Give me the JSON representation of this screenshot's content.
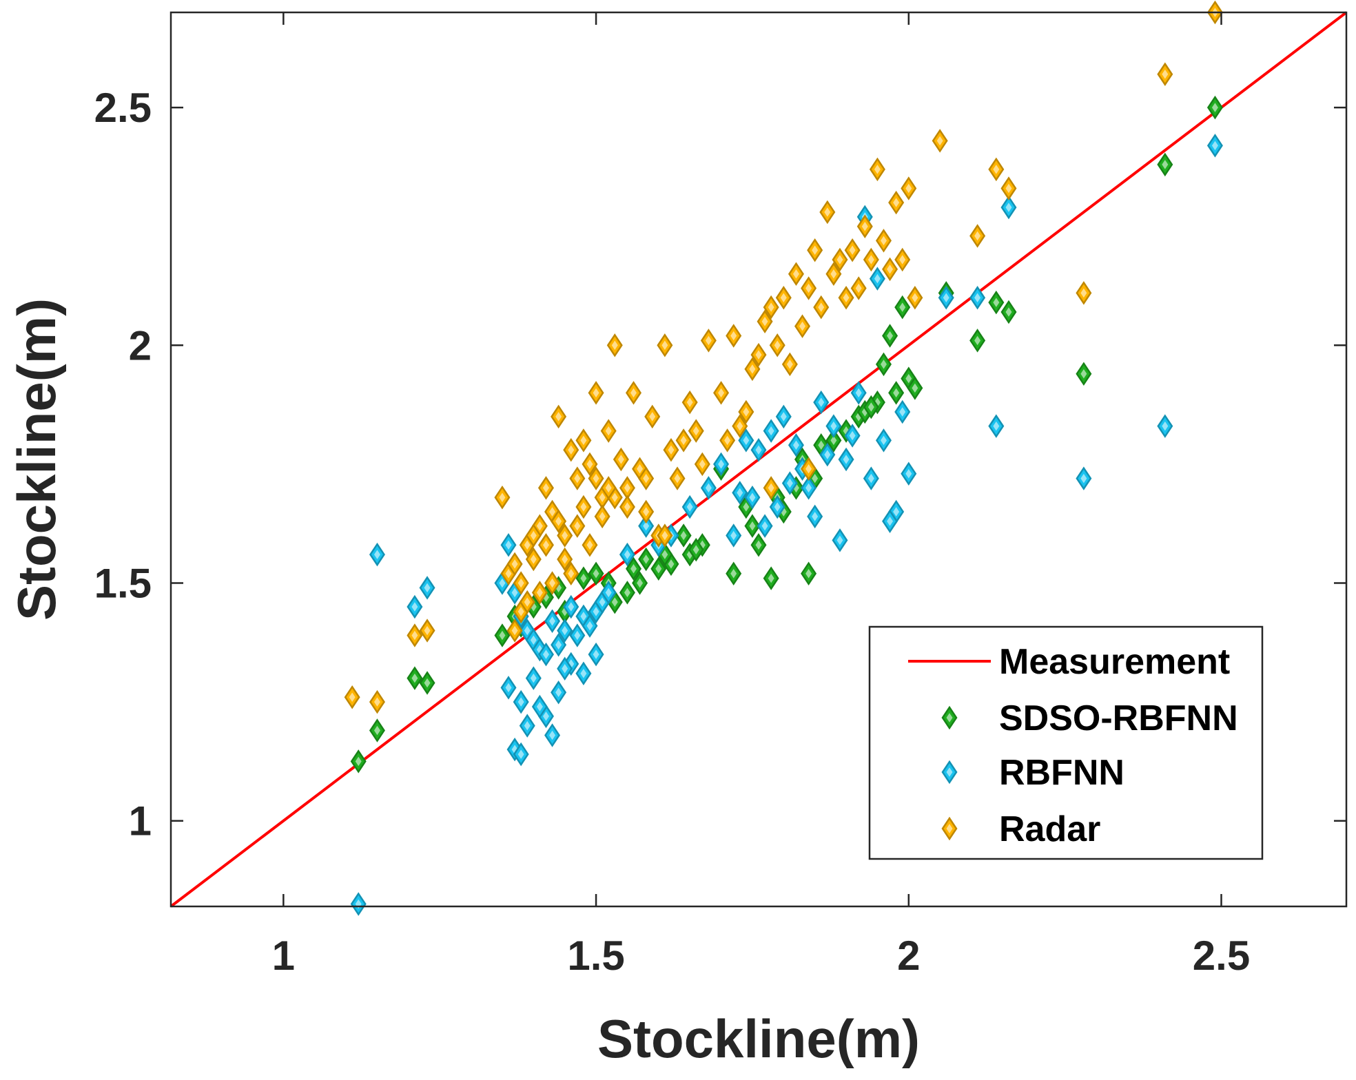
{
  "chart_data": {
    "type": "scatter",
    "title": "",
    "xlabel": "Stockline(m)",
    "ylabel": "Stockline(m)",
    "xlim": [
      0.82,
      2.7
    ],
    "ylim": [
      0.82,
      2.7
    ],
    "xticks": [
      1,
      1.5,
      2,
      2.5
    ],
    "yticks": [
      1,
      1.5,
      2,
      2.5
    ],
    "xtick_labels": [
      "1",
      "1.5",
      "2",
      "2.5"
    ],
    "ytick_labels": [
      "1",
      "1.5",
      "2",
      "2.5"
    ],
    "grid": false,
    "legend_position": "bottom-right",
    "reference_line": {
      "name": "Measurement",
      "color": "#ff0000",
      "x": [
        0.82,
        2.7
      ],
      "y": [
        0.82,
        2.7
      ]
    },
    "series": [
      {
        "name": "SDSO-RBFNN",
        "marker": "diamond",
        "color": "#1fae1f",
        "x": [
          1.12,
          1.15,
          1.21,
          1.23,
          1.35,
          1.37,
          1.4,
          1.42,
          1.45,
          1.5,
          1.53,
          1.55,
          1.57,
          1.58,
          1.6,
          1.62,
          1.65,
          1.67,
          1.72,
          1.75,
          1.76,
          1.78,
          1.8,
          1.82,
          1.84,
          1.85,
          1.87,
          1.9,
          1.92,
          1.95,
          1.96,
          1.97,
          1.99,
          2.0,
          2.06,
          2.11,
          2.14,
          2.16,
          2.28,
          2.41,
          2.49,
          1.38,
          1.44,
          1.48,
          1.52,
          1.56,
          1.61,
          1.66,
          1.74,
          1.79,
          1.83,
          1.88,
          1.93,
          1.98,
          2.01,
          1.7,
          1.86,
          1.94,
          1.64
        ],
        "y": [
          1.125,
          1.19,
          1.3,
          1.29,
          1.39,
          1.43,
          1.45,
          1.47,
          1.44,
          1.52,
          1.46,
          1.48,
          1.5,
          1.55,
          1.53,
          1.54,
          1.56,
          1.58,
          1.52,
          1.62,
          1.58,
          1.51,
          1.65,
          1.7,
          1.52,
          1.72,
          1.78,
          1.82,
          1.85,
          1.88,
          1.96,
          2.02,
          2.08,
          1.93,
          2.11,
          2.01,
          2.09,
          2.07,
          1.94,
          2.38,
          2.5,
          1.41,
          1.49,
          1.51,
          1.5,
          1.53,
          1.56,
          1.57,
          1.66,
          1.68,
          1.76,
          1.8,
          1.86,
          1.9,
          1.91,
          1.74,
          1.79,
          1.87,
          1.6
        ]
      },
      {
        "name": "RBFNN",
        "marker": "diamond",
        "color": "#19c3f0",
        "x": [
          1.12,
          1.15,
          1.21,
          1.23,
          1.35,
          1.36,
          1.37,
          1.38,
          1.39,
          1.4,
          1.41,
          1.42,
          1.43,
          1.44,
          1.45,
          1.46,
          1.47,
          1.48,
          1.49,
          1.5,
          1.51,
          1.52,
          1.36,
          1.38,
          1.4,
          1.42,
          1.44,
          1.46,
          1.48,
          1.5,
          1.39,
          1.41,
          1.43,
          1.45,
          1.37,
          1.38,
          1.55,
          1.58,
          1.6,
          1.62,
          1.65,
          1.68,
          1.7,
          1.72,
          1.74,
          1.76,
          1.78,
          1.8,
          1.82,
          1.84,
          1.86,
          1.88,
          1.9,
          1.92,
          1.94,
          1.96,
          1.98,
          2.0,
          1.75,
          1.77,
          1.79,
          1.81,
          1.83,
          1.85,
          1.87,
          1.89,
          1.91,
          1.93,
          1.73,
          1.95,
          1.97,
          2.06,
          2.11,
          2.14,
          2.16,
          2.28,
          2.41,
          2.49,
          1.99
        ],
        "y": [
          0.825,
          1.56,
          1.45,
          1.49,
          1.5,
          1.58,
          1.48,
          1.43,
          1.4,
          1.38,
          1.36,
          1.35,
          1.42,
          1.37,
          1.4,
          1.45,
          1.39,
          1.43,
          1.41,
          1.44,
          1.46,
          1.48,
          1.28,
          1.25,
          1.3,
          1.22,
          1.27,
          1.33,
          1.31,
          1.35,
          1.2,
          1.24,
          1.18,
          1.32,
          1.15,
          1.14,
          1.56,
          1.62,
          1.58,
          1.6,
          1.66,
          1.7,
          1.75,
          1.6,
          1.8,
          1.78,
          1.82,
          1.85,
          1.79,
          1.7,
          1.88,
          1.83,
          1.76,
          1.9,
          1.72,
          1.8,
          1.65,
          1.73,
          1.68,
          1.62,
          1.66,
          1.71,
          1.74,
          1.64,
          1.77,
          1.59,
          1.81,
          2.27,
          1.69,
          2.14,
          1.63,
          2.1,
          2.1,
          1.83,
          2.29,
          1.72,
          1.83,
          2.42,
          1.86
        ]
      },
      {
        "name": "Radar",
        "marker": "diamond",
        "color": "#ffb400",
        "x": [
          1.11,
          1.15,
          1.21,
          1.23,
          1.35,
          1.36,
          1.37,
          1.38,
          1.39,
          1.4,
          1.41,
          1.42,
          1.43,
          1.44,
          1.45,
          1.46,
          1.47,
          1.48,
          1.49,
          1.5,
          1.51,
          1.52,
          1.53,
          1.54,
          1.55,
          1.56,
          1.57,
          1.58,
          1.59,
          1.6,
          1.61,
          1.62,
          1.63,
          1.64,
          1.65,
          1.66,
          1.67,
          1.68,
          1.7,
          1.72,
          1.74,
          1.75,
          1.76,
          1.77,
          1.78,
          1.79,
          1.8,
          1.81,
          1.82,
          1.83,
          1.84,
          1.85,
          1.86,
          1.87,
          1.88,
          1.89,
          1.9,
          1.91,
          1.92,
          1.93,
          1.94,
          1.95,
          1.96,
          1.97,
          1.98,
          1.99,
          2.0,
          2.01,
          2.05,
          2.11,
          2.14,
          2.16,
          2.28,
          2.41,
          2.49,
          1.43,
          1.45,
          1.47,
          1.49,
          1.51,
          1.53,
          1.41,
          1.39,
          1.46,
          1.48,
          1.5,
          1.42,
          1.44,
          1.52,
          1.55,
          1.58,
          1.61,
          1.37,
          1.38,
          1.4,
          1.84,
          1.78,
          1.71,
          1.73
        ],
        "y": [
          1.26,
          1.25,
          1.39,
          1.4,
          1.68,
          1.52,
          1.4,
          1.44,
          1.58,
          1.55,
          1.62,
          1.7,
          1.65,
          1.85,
          1.6,
          1.78,
          1.72,
          1.8,
          1.75,
          1.9,
          1.68,
          1.82,
          2.0,
          1.76,
          1.7,
          1.9,
          1.74,
          1.65,
          1.85,
          1.6,
          2.0,
          1.78,
          1.72,
          1.8,
          1.88,
          1.82,
          1.75,
          2.01,
          1.9,
          2.02,
          1.86,
          1.95,
          1.98,
          2.05,
          2.08,
          2.0,
          2.1,
          1.96,
          2.15,
          2.04,
          2.12,
          2.2,
          2.08,
          2.28,
          2.15,
          2.18,
          2.1,
          2.2,
          2.12,
          2.25,
          2.18,
          2.37,
          2.22,
          2.16,
          2.3,
          2.18,
          2.33,
          2.1,
          2.43,
          2.23,
          2.37,
          2.33,
          2.11,
          2.57,
          2.7,
          1.5,
          1.55,
          1.62,
          1.58,
          1.64,
          1.68,
          1.48,
          1.46,
          1.52,
          1.66,
          1.72,
          1.58,
          1.63,
          1.7,
          1.66,
          1.72,
          1.6,
          1.54,
          1.5,
          1.6,
          1.74,
          1.7,
          1.8,
          1.83
        ]
      }
    ]
  },
  "legend": {
    "items": [
      {
        "label": "Measurement",
        "kind": "line",
        "color": "#ff0000"
      },
      {
        "label": "SDSO-RBFNN",
        "kind": "marker",
        "color": "#1fae1f"
      },
      {
        "label": "RBFNN",
        "kind": "marker",
        "color": "#19c3f0"
      },
      {
        "label": "Radar",
        "kind": "marker",
        "color": "#ffb400"
      }
    ]
  }
}
